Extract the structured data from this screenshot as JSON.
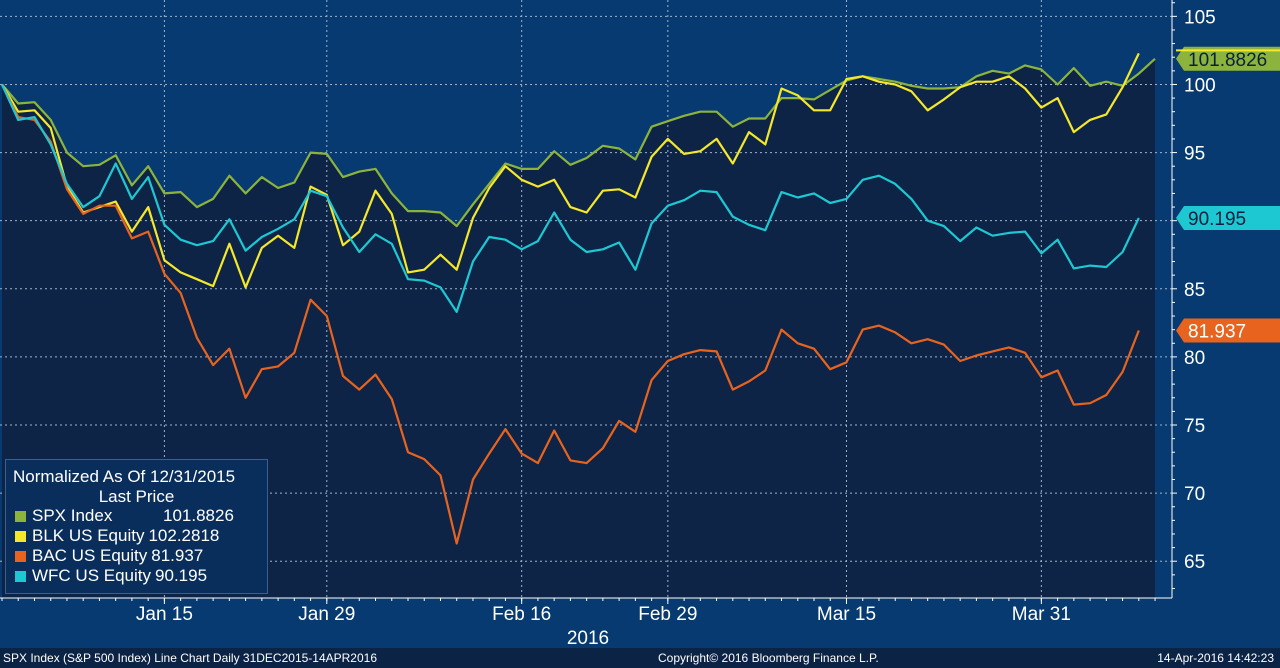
{
  "chart_data": {
    "type": "line",
    "legend_title": "Normalized As Of 12/31/2015",
    "legend_subtitle": "Last Price",
    "legend_position": "bottom-left",
    "y_axis_side": "right",
    "ylim": [
      62.3,
      106.2
    ],
    "yticks": [
      65,
      70,
      75,
      80,
      85,
      90,
      95,
      100,
      105
    ],
    "x_ticks": [
      {
        "label": "Jan 15",
        "index": 10
      },
      {
        "label": "Jan 29",
        "index": 20
      },
      {
        "label": "Feb 16",
        "index": 32
      },
      {
        "label": "Feb 29",
        "index": 41
      },
      {
        "label": "Mar 15",
        "index": 52
      },
      {
        "label": "Mar 31",
        "index": 64
      }
    ],
    "year_label": "2016",
    "grid": true,
    "x_start": "2015-12-31",
    "x_end": "2016-04-14",
    "series": [
      {
        "name": "SPX Index",
        "last_value": "101.8826",
        "color": "#8cb43c",
        "values": [
          100,
          98.6,
          98.7,
          97.4,
          95.0,
          94.0,
          94.1,
          94.8,
          92.6,
          94.0,
          92.0,
          92.1,
          91.0,
          91.6,
          93.3,
          92.0,
          93.2,
          92.4,
          92.8,
          95.0,
          94.9,
          93.2,
          93.6,
          93.8,
          92.0,
          90.7,
          90.7,
          90.6,
          89.6,
          91.2,
          92.7,
          94.2,
          93.8,
          93.8,
          95.1,
          94.1,
          94.6,
          95.5,
          95.3,
          94.5,
          96.9,
          97.3,
          97.7,
          98.0,
          98.0,
          96.9,
          97.5,
          97.5,
          99.0,
          99.0,
          98.9,
          99.6,
          100.3,
          100.6,
          100.4,
          100.2,
          99.9,
          99.7,
          99.7,
          99.8,
          100.6,
          101.0,
          100.8,
          101.4,
          101.1,
          100.0,
          101.2,
          99.9,
          100.2,
          99.9,
          100.8,
          101.88
        ]
      },
      {
        "name": "BLK US Equity",
        "last_value": "102.2818",
        "color": "#f5e82a",
        "values": [
          100,
          98.0,
          98.1,
          96.8,
          92.5,
          90.6,
          91.0,
          91.4,
          89.2,
          91.0,
          87.1,
          86.2,
          85.7,
          85.2,
          88.3,
          85.1,
          88.0,
          88.9,
          88.0,
          92.5,
          91.9,
          88.2,
          89.2,
          92.2,
          90.5,
          86.2,
          86.4,
          87.5,
          86.4,
          90.2,
          92.4,
          94.0,
          93.0,
          92.5,
          93.0,
          91.0,
          90.6,
          92.2,
          92.3,
          91.7,
          94.7,
          96.0,
          94.9,
          95.1,
          96.0,
          94.2,
          96.5,
          95.6,
          99.7,
          99.2,
          98.1,
          98.1,
          100.4,
          100.6,
          100.2,
          100.0,
          99.5,
          98.1,
          98.9,
          99.8,
          100.2,
          100.2,
          100.6,
          99.7,
          98.3,
          99.0,
          96.5,
          97.4,
          97.8,
          99.8,
          102.28
        ]
      },
      {
        "name": "BAC US Equity",
        "last_value": "81.937",
        "color": "#e8641e",
        "values": [
          100,
          97.6,
          97.4,
          95.8,
          92.3,
          90.5,
          91.1,
          91.1,
          88.7,
          89.2,
          86.1,
          84.7,
          81.4,
          79.4,
          80.6,
          77.0,
          79.1,
          79.3,
          80.3,
          84.2,
          83.0,
          78.6,
          77.6,
          78.7,
          76.9,
          73.0,
          72.5,
          71.3,
          66.3,
          71.0,
          72.9,
          74.7,
          72.9,
          72.2,
          74.6,
          72.4,
          72.2,
          73.3,
          75.3,
          74.5,
          78.3,
          79.7,
          80.2,
          80.5,
          80.4,
          77.6,
          78.2,
          79.0,
          82.0,
          81.0,
          80.6,
          79.1,
          79.6,
          82.0,
          82.3,
          81.8,
          81.0,
          81.3,
          80.9,
          79.7,
          80.1,
          80.4,
          80.7,
          80.3,
          78.5,
          79.0,
          76.5,
          76.6,
          77.2,
          78.9,
          81.937
        ]
      },
      {
        "name": "WFC US Equity",
        "last_value": "90.195",
        "color": "#1ec8d2",
        "values": [
          100,
          97.4,
          97.6,
          95.6,
          92.7,
          91.0,
          91.8,
          94.2,
          91.6,
          93.2,
          89.7,
          88.6,
          88.2,
          88.5,
          90.1,
          87.8,
          88.8,
          89.4,
          90.1,
          92.2,
          91.8,
          89.5,
          87.7,
          89.0,
          88.3,
          85.7,
          85.6,
          85.1,
          83.3,
          87.0,
          88.8,
          88.6,
          87.9,
          88.5,
          90.6,
          88.6,
          87.7,
          87.9,
          88.4,
          86.4,
          89.8,
          91.1,
          91.5,
          92.2,
          92.1,
          90.3,
          89.7,
          89.3,
          92.1,
          91.7,
          92.0,
          91.3,
          91.6,
          93.0,
          93.3,
          92.7,
          91.6,
          90.0,
          89.6,
          88.5,
          89.5,
          88.9,
          89.1,
          89.2,
          87.6,
          88.6,
          86.5,
          86.7,
          86.6,
          87.7,
          90.195
        ]
      }
    ]
  },
  "footer": {
    "left": "SPX Index (S&P 500 Index) Line Chart  Daily 31DEC2015-14APR2016",
    "center": "Copyright© 2016 Bloomberg Finance L.P.",
    "right": "14-Apr-2016 14:42:23"
  },
  "colors": {
    "background": "#073a70",
    "plot_fill": "#0d2446",
    "grid": "#9fb3cf"
  }
}
